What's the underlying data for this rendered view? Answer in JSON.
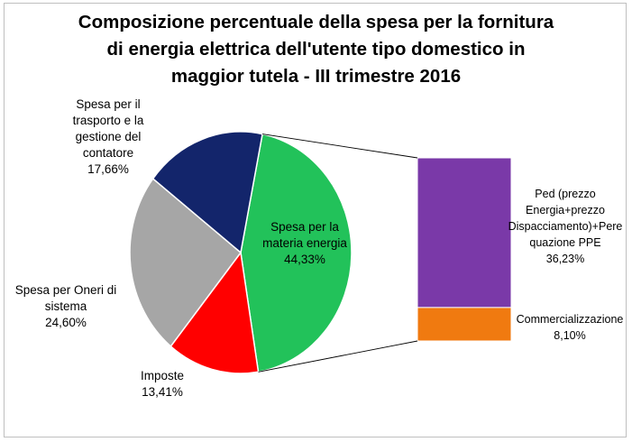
{
  "title_lines": [
    "Composizione percentuale della spesa per la fornitura",
    "di energia elettrica dell'utente tipo domestico in",
    "maggior tutela - III trimestre 2016"
  ],
  "chart_data": {
    "type": "bar-of-pie",
    "title": "Composizione percentuale della spesa per la fornitura di energia elettrica dell'utente tipo domestico in maggior tutela - III trimestre 2016",
    "pie": {
      "slices": [
        {
          "label_lines": [
            "Spesa per la",
            "materia energia"
          ],
          "value_text": "44,33%",
          "value": 44.33,
          "color": "#22c25a"
        },
        {
          "label_lines": [
            "Imposte"
          ],
          "value_text": "13,41%",
          "value": 13.41,
          "color": "#ff0000"
        },
        {
          "label_lines": [
            "Spesa per Oneri di",
            "sistema"
          ],
          "value_text": "24,60%",
          "value": 24.6,
          "color": "#a6a6a6"
        },
        {
          "label_lines": [
            "Spesa per il",
            "trasporto e la",
            "gestione del",
            "contatore"
          ],
          "value_text": "17,66%",
          "value": 17.66,
          "color": "#13256b"
        }
      ]
    },
    "bar": {
      "breakdown_of": "Spesa per la materia energia",
      "segments": [
        {
          "label_lines": [
            "Ped (prezzo",
            "Energia+prezzo",
            "Dispacciamento)+Pere",
            "quazione PPE"
          ],
          "value_text": "36,23%",
          "value": 36.23,
          "color": "#7a39a8"
        },
        {
          "label_lines": [
            "Commercializzazione"
          ],
          "value_text": "8,10%",
          "value": 8.1,
          "color": "#f07a10"
        }
      ]
    },
    "connector_color": "#000000"
  }
}
